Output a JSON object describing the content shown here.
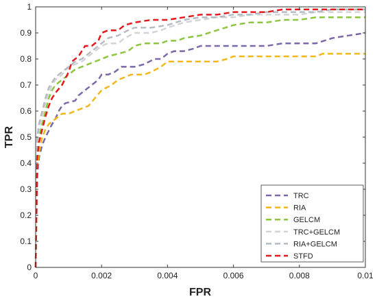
{
  "chart_data": {
    "type": "line",
    "title": "",
    "xlabel": "FPR",
    "ylabel": "TPR",
    "xlim": [
      0,
      0.01
    ],
    "ylim": [
      0,
      1
    ],
    "grid": false,
    "legend_position": "bottom-right",
    "x_ticks": [
      "0",
      "0.002",
      "0.004",
      "0.006",
      "0.008",
      "0.01"
    ],
    "y_ticks": [
      "0",
      "0.1",
      "0.2",
      "0.3",
      "0.4",
      "0.5",
      "0.6",
      "0.7",
      "0.8",
      "0.9",
      "1"
    ],
    "series": [
      {
        "name": "TRC",
        "color": "#7b68a6",
        "points": [
          [
            0,
            0
          ],
          [
            5e-05,
            0.35
          ],
          [
            0.0001,
            0.42
          ],
          [
            0.0002,
            0.47
          ],
          [
            0.0003,
            0.5
          ],
          [
            0.0005,
            0.55
          ],
          [
            0.0006,
            0.57
          ],
          [
            0.0007,
            0.6
          ],
          [
            0.0008,
            0.62
          ],
          [
            0.0009,
            0.63
          ],
          [
            0.0012,
            0.64
          ],
          [
            0.0013,
            0.66
          ],
          [
            0.0015,
            0.68
          ],
          [
            0.0017,
            0.7
          ],
          [
            0.0019,
            0.72
          ],
          [
            0.002,
            0.74
          ],
          [
            0.0022,
            0.74
          ],
          [
            0.0024,
            0.75
          ],
          [
            0.0026,
            0.77
          ],
          [
            0.003,
            0.77
          ],
          [
            0.0033,
            0.78
          ],
          [
            0.0036,
            0.8
          ],
          [
            0.0038,
            0.8
          ],
          [
            0.004,
            0.82
          ],
          [
            0.0042,
            0.83
          ],
          [
            0.0045,
            0.83
          ],
          [
            0.0048,
            0.84
          ],
          [
            0.005,
            0.85
          ],
          [
            0.0055,
            0.85
          ],
          [
            0.006,
            0.85
          ],
          [
            0.0065,
            0.85
          ],
          [
            0.007,
            0.85
          ],
          [
            0.0075,
            0.86
          ],
          [
            0.008,
            0.86
          ],
          [
            0.0085,
            0.86
          ],
          [
            0.009,
            0.88
          ],
          [
            0.0095,
            0.89
          ],
          [
            0.01,
            0.9
          ]
        ]
      },
      {
        "name": "RIA",
        "color": "#f2b81a",
        "points": [
          [
            0,
            0
          ],
          [
            5e-05,
            0.38
          ],
          [
            0.0001,
            0.44
          ],
          [
            0.0002,
            0.5
          ],
          [
            0.0003,
            0.53
          ],
          [
            0.0004,
            0.55
          ],
          [
            0.0005,
            0.56
          ],
          [
            0.0006,
            0.57
          ],
          [
            0.0008,
            0.59
          ],
          [
            0.001,
            0.59
          ],
          [
            0.0012,
            0.6
          ],
          [
            0.0014,
            0.61
          ],
          [
            0.0016,
            0.62
          ],
          [
            0.0018,
            0.65
          ],
          [
            0.002,
            0.68
          ],
          [
            0.0023,
            0.7
          ],
          [
            0.0025,
            0.72
          ],
          [
            0.0027,
            0.73
          ],
          [
            0.0029,
            0.74
          ],
          [
            0.0033,
            0.74
          ],
          [
            0.0035,
            0.75
          ],
          [
            0.0038,
            0.77
          ],
          [
            0.004,
            0.79
          ],
          [
            0.0045,
            0.79
          ],
          [
            0.0055,
            0.79
          ],
          [
            0.0058,
            0.8
          ],
          [
            0.006,
            0.81
          ],
          [
            0.0065,
            0.81
          ],
          [
            0.007,
            0.81
          ],
          [
            0.0075,
            0.81
          ],
          [
            0.008,
            0.81
          ],
          [
            0.0085,
            0.81
          ],
          [
            0.0087,
            0.82
          ],
          [
            0.009,
            0.82
          ],
          [
            0.0095,
            0.82
          ],
          [
            0.01,
            0.82
          ]
        ]
      },
      {
        "name": "GELCM",
        "color": "#8cc63f",
        "points": [
          [
            0,
            0
          ],
          [
            5e-05,
            0.45
          ],
          [
            0.0001,
            0.5
          ],
          [
            0.0002,
            0.55
          ],
          [
            0.0003,
            0.6
          ],
          [
            0.0004,
            0.65
          ],
          [
            0.0005,
            0.68
          ],
          [
            0.0006,
            0.7
          ],
          [
            0.0008,
            0.72
          ],
          [
            0.001,
            0.74
          ],
          [
            0.0012,
            0.76
          ],
          [
            0.0014,
            0.77
          ],
          [
            0.0016,
            0.78
          ],
          [
            0.0018,
            0.79
          ],
          [
            0.002,
            0.8
          ],
          [
            0.0022,
            0.81
          ],
          [
            0.0025,
            0.82
          ],
          [
            0.0028,
            0.83
          ],
          [
            0.003,
            0.85
          ],
          [
            0.0033,
            0.86
          ],
          [
            0.0035,
            0.86
          ],
          [
            0.0038,
            0.86
          ],
          [
            0.004,
            0.87
          ],
          [
            0.0043,
            0.87
          ],
          [
            0.0045,
            0.88
          ],
          [
            0.005,
            0.89
          ],
          [
            0.0055,
            0.91
          ],
          [
            0.006,
            0.93
          ],
          [
            0.0065,
            0.94
          ],
          [
            0.007,
            0.94
          ],
          [
            0.0075,
            0.95
          ],
          [
            0.008,
            0.95
          ],
          [
            0.0085,
            0.96
          ],
          [
            0.009,
            0.96
          ],
          [
            0.0095,
            0.96
          ],
          [
            0.01,
            0.96
          ]
        ]
      },
      {
        "name": "TRC+GELCM",
        "color": "#d4d4d4",
        "points": [
          [
            0,
            0
          ],
          [
            5e-05,
            0.47
          ],
          [
            0.0001,
            0.53
          ],
          [
            0.0002,
            0.58
          ],
          [
            0.0003,
            0.63
          ],
          [
            0.0004,
            0.67
          ],
          [
            0.0005,
            0.7
          ],
          [
            0.0006,
            0.72
          ],
          [
            0.0008,
            0.74
          ],
          [
            0.001,
            0.77
          ],
          [
            0.0012,
            0.78
          ],
          [
            0.0014,
            0.79
          ],
          [
            0.0016,
            0.81
          ],
          [
            0.0018,
            0.83
          ],
          [
            0.002,
            0.85
          ],
          [
            0.0022,
            0.86
          ],
          [
            0.0025,
            0.86
          ],
          [
            0.0027,
            0.88
          ],
          [
            0.003,
            0.9
          ],
          [
            0.0035,
            0.9
          ],
          [
            0.0038,
            0.91
          ],
          [
            0.004,
            0.92
          ],
          [
            0.0045,
            0.94
          ],
          [
            0.005,
            0.95
          ],
          [
            0.0055,
            0.96
          ],
          [
            0.006,
            0.96
          ],
          [
            0.0065,
            0.97
          ],
          [
            0.007,
            0.97
          ],
          [
            0.0075,
            0.97
          ],
          [
            0.008,
            0.97
          ],
          [
            0.0085,
            0.98
          ],
          [
            0.009,
            0.98
          ],
          [
            0.0095,
            0.98
          ],
          [
            0.01,
            0.98
          ]
        ]
      },
      {
        "name": "RIA+GELCM",
        "color": "#b4bcc2",
        "points": [
          [
            0,
            0
          ],
          [
            5e-05,
            0.5
          ],
          [
            0.0001,
            0.55
          ],
          [
            0.0002,
            0.6
          ],
          [
            0.0003,
            0.65
          ],
          [
            0.0004,
            0.69
          ],
          [
            0.0005,
            0.71
          ],
          [
            0.0006,
            0.73
          ],
          [
            0.0008,
            0.75
          ],
          [
            0.001,
            0.77
          ],
          [
            0.0012,
            0.79
          ],
          [
            0.0014,
            0.8
          ],
          [
            0.0016,
            0.82
          ],
          [
            0.0018,
            0.84
          ],
          [
            0.002,
            0.86
          ],
          [
            0.0022,
            0.88
          ],
          [
            0.0025,
            0.89
          ],
          [
            0.0028,
            0.91
          ],
          [
            0.003,
            0.92
          ],
          [
            0.0035,
            0.92
          ],
          [
            0.004,
            0.93
          ],
          [
            0.0045,
            0.95
          ],
          [
            0.005,
            0.96
          ],
          [
            0.0055,
            0.96
          ],
          [
            0.006,
            0.97
          ],
          [
            0.0065,
            0.97
          ],
          [
            0.007,
            0.98
          ],
          [
            0.0075,
            0.98
          ],
          [
            0.008,
            0.98
          ],
          [
            0.0085,
            0.98
          ],
          [
            0.009,
            0.99
          ],
          [
            0.0095,
            0.99
          ],
          [
            0.01,
            0.99
          ]
        ]
      },
      {
        "name": "STFD",
        "color": "#e31a1c",
        "points": [
          [
            0,
            0
          ],
          [
            5e-05,
            0.42
          ],
          [
            0.0001,
            0.48
          ],
          [
            0.0002,
            0.53
          ],
          [
            0.0003,
            0.58
          ],
          [
            0.0004,
            0.62
          ],
          [
            0.0005,
            0.65
          ],
          [
            0.0006,
            0.67
          ],
          [
            0.0008,
            0.7
          ],
          [
            0.001,
            0.75
          ],
          [
            0.0011,
            0.79
          ],
          [
            0.0013,
            0.81
          ],
          [
            0.0015,
            0.85
          ],
          [
            0.0017,
            0.85
          ],
          [
            0.0019,
            0.87
          ],
          [
            0.002,
            0.9
          ],
          [
            0.0022,
            0.91
          ],
          [
            0.0025,
            0.91
          ],
          [
            0.0027,
            0.93
          ],
          [
            0.003,
            0.94
          ],
          [
            0.0035,
            0.95
          ],
          [
            0.004,
            0.95
          ],
          [
            0.0045,
            0.96
          ],
          [
            0.005,
            0.97
          ],
          [
            0.0055,
            0.97
          ],
          [
            0.006,
            0.98
          ],
          [
            0.0065,
            0.98
          ],
          [
            0.007,
            0.98
          ],
          [
            0.0075,
            0.99
          ],
          [
            0.008,
            0.99
          ],
          [
            0.0085,
            0.99
          ],
          [
            0.009,
            0.99
          ],
          [
            0.0095,
            0.99
          ],
          [
            0.01,
            0.99
          ]
        ]
      }
    ]
  }
}
